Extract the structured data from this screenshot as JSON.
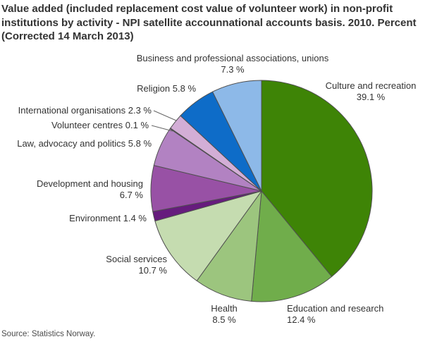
{
  "title": {
    "full": "Value added (included replacement cost value of volunteer work) in non-profit institutions by activity - NPI satellite accounnational accounts basis. 2010. Percent (Corrected 14 March 2013)",
    "lines": [
      "Value added (included replacement cost value of volunteer work) in non-profit",
      "institutions by activity - NPI satellite accounnational accounts basis. 2010. Percent",
      "(Corrected 14 March 2013)"
    ]
  },
  "source": "Source: Statistics Norway.",
  "chart_data": {
    "type": "pie",
    "title": "Value added (included replacement cost value of volunteer work) in non-profit institutions by activity - NPI satellite accounnational accounts basis. 2010. Percent (Corrected 14 March 2013)",
    "unit": "percent",
    "direction": "clockwise",
    "start_angle_deg": 0,
    "label_position": "outside",
    "border_color": "#4f4f4f",
    "leader_line_color": "#666666",
    "slices": [
      {
        "label": "Culture and recreation",
        "value": 39.1,
        "color": "#3e8406",
        "lines": [
          "Culture and recreation",
          "39.1 %"
        ]
      },
      {
        "label": "Education and research",
        "value": 12.4,
        "color": "#70ad4b",
        "lines": [
          "Education and research",
          "12.4 %"
        ]
      },
      {
        "label": "Health",
        "value": 8.5,
        "color": "#9cc57e",
        "lines": [
          "Health",
          "8.5 %"
        ]
      },
      {
        "label": "Social services",
        "value": 10.7,
        "color": "#c5dcb0",
        "lines": [
          "Social services",
          "10.7 %"
        ]
      },
      {
        "label": "Environment",
        "value": 1.4,
        "color": "#661c7d",
        "lines": [
          "Environment 1.4 %"
        ]
      },
      {
        "label": "Development and housing",
        "value": 6.7,
        "color": "#9851a5",
        "lines": [
          "Development and housing",
          "6.7 %"
        ]
      },
      {
        "label": "Law, advocacy and politics",
        "value": 5.8,
        "color": "#b282c2",
        "lines": [
          "Law, advocacy and politics 5.8 %"
        ]
      },
      {
        "label": "Volunteer centres",
        "value": 0.1,
        "color": "#5b2d84",
        "lines": [
          "Volunteer centres 0.1 %"
        ]
      },
      {
        "label": "International organisations",
        "value": 2.3,
        "color": "#d3aed6",
        "lines": [
          "International organisations 2.3 %"
        ]
      },
      {
        "label": "Religion",
        "value": 5.8,
        "color": "#0e6cc8",
        "lines": [
          "Religion 5.8 %"
        ]
      },
      {
        "label": "Business and professional associations, unions",
        "value": 7.3,
        "color": "#8db9e8",
        "lines": [
          "Business and professional associations, unions",
          "7.3 %"
        ]
      }
    ]
  }
}
